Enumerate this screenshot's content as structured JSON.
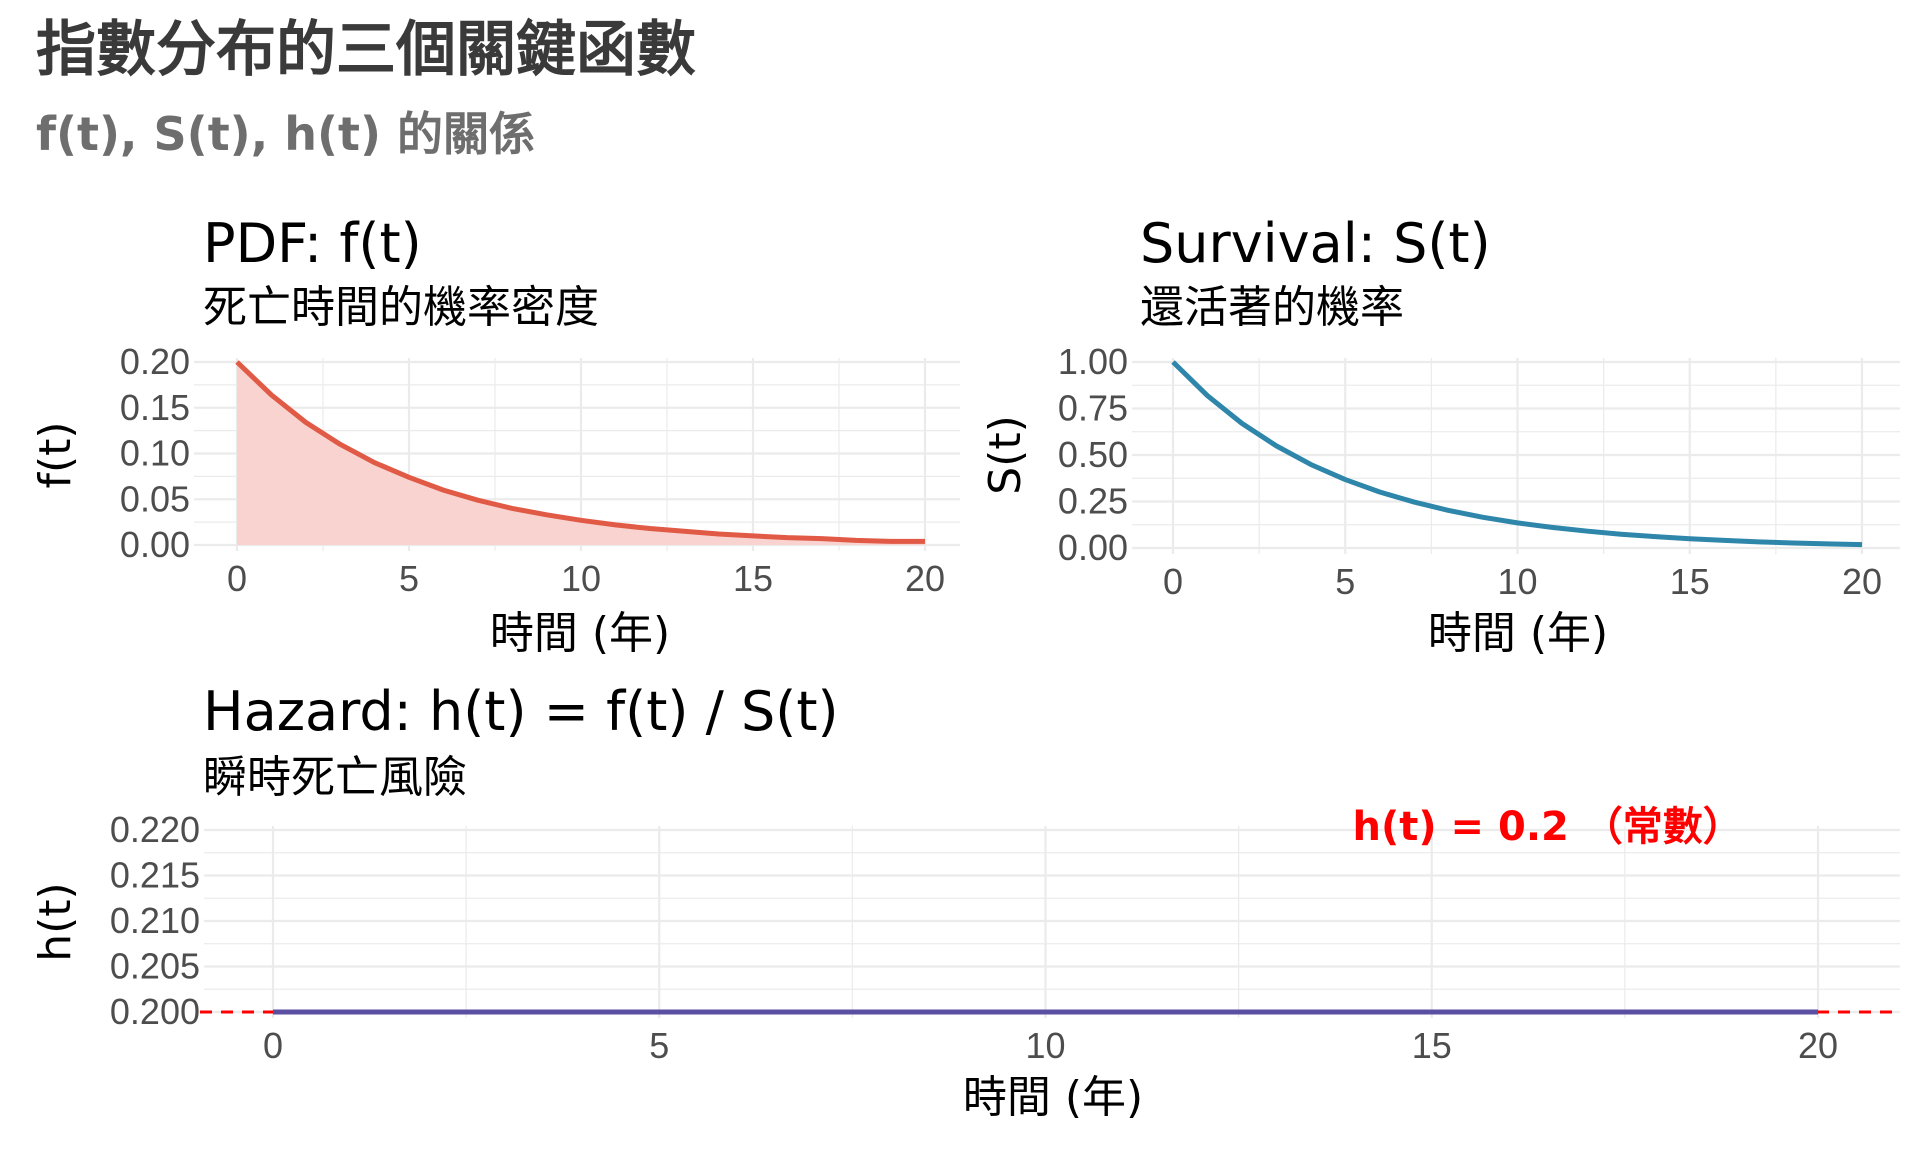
{
  "title": "指數分布的三個關鍵函數",
  "subtitle": "f(t), S(t), h(t) 的關係",
  "colors": {
    "pdf_line": "#e05a45",
    "pdf_fill": "#f9d3d0",
    "survival_line": "#2e86ab",
    "hazard_line": "#5b4fa2",
    "hazard_ref": "#ff0000",
    "grid": "#ebebeb"
  },
  "chart_data": [
    {
      "type": "area",
      "title": "PDF: f(t)",
      "subtitle": "死亡時間的機率密度",
      "xlabel": "時間 (年)",
      "ylabel": "f(t)",
      "xlim": [
        0,
        20
      ],
      "ylim": [
        0,
        0.2
      ],
      "xticks": [
        "0",
        "5",
        "10",
        "15",
        "20"
      ],
      "yticks": [
        "0.00",
        "0.05",
        "0.10",
        "0.15",
        "0.20"
      ],
      "series": [
        {
          "x": [
            0,
            1,
            2,
            3,
            4,
            5,
            6,
            7,
            8,
            9,
            10,
            11,
            12,
            13,
            14,
            15,
            16,
            17,
            18,
            19,
            20
          ],
          "y": [
            0.2,
            0.164,
            0.134,
            0.11,
            0.09,
            0.074,
            0.06,
            0.049,
            0.04,
            0.033,
            0.027,
            0.022,
            0.018,
            0.015,
            0.012,
            0.01,
            0.008,
            0.007,
            0.005,
            0.004,
            0.004
          ]
        }
      ],
      "grid": true
    },
    {
      "type": "line",
      "title": "Survival: S(t)",
      "subtitle": "還活著的機率",
      "xlabel": "時間 (年)",
      "ylabel": "S(t)",
      "xlim": [
        0,
        20
      ],
      "ylim": [
        0,
        1
      ],
      "xticks": [
        "0",
        "5",
        "10",
        "15",
        "20"
      ],
      "yticks": [
        "0.00",
        "0.25",
        "0.50",
        "0.75",
        "1.00"
      ],
      "series": [
        {
          "x": [
            0,
            1,
            2,
            3,
            4,
            5,
            6,
            7,
            8,
            9,
            10,
            11,
            12,
            13,
            14,
            15,
            16,
            17,
            18,
            19,
            20
          ],
          "y": [
            1.0,
            0.819,
            0.67,
            0.549,
            0.449,
            0.368,
            0.301,
            0.247,
            0.202,
            0.165,
            0.135,
            0.111,
            0.091,
            0.074,
            0.061,
            0.05,
            0.041,
            0.033,
            0.027,
            0.022,
            0.018
          ]
        }
      ],
      "grid": true
    },
    {
      "type": "line",
      "title": "Hazard: h(t) = f(t) / S(t)",
      "subtitle": "瞬時死亡風險",
      "xlabel": "時間 (年)",
      "ylabel": "h(t)",
      "xlim": [
        0,
        20
      ],
      "ylim": [
        0.2,
        0.22
      ],
      "xticks": [
        "0",
        "5",
        "10",
        "15",
        "20"
      ],
      "yticks": [
        "0.200",
        "0.205",
        "0.210",
        "0.215",
        "0.220"
      ],
      "series": [
        {
          "x": [
            0,
            20
          ],
          "y": [
            0.2,
            0.2
          ]
        }
      ],
      "reference_line": {
        "y": 0.2,
        "style": "dashed"
      },
      "annotation": {
        "text": "h(t) = 0.2 （常數）",
        "x": 16.5,
        "y": 0.22
      },
      "grid": true
    }
  ]
}
